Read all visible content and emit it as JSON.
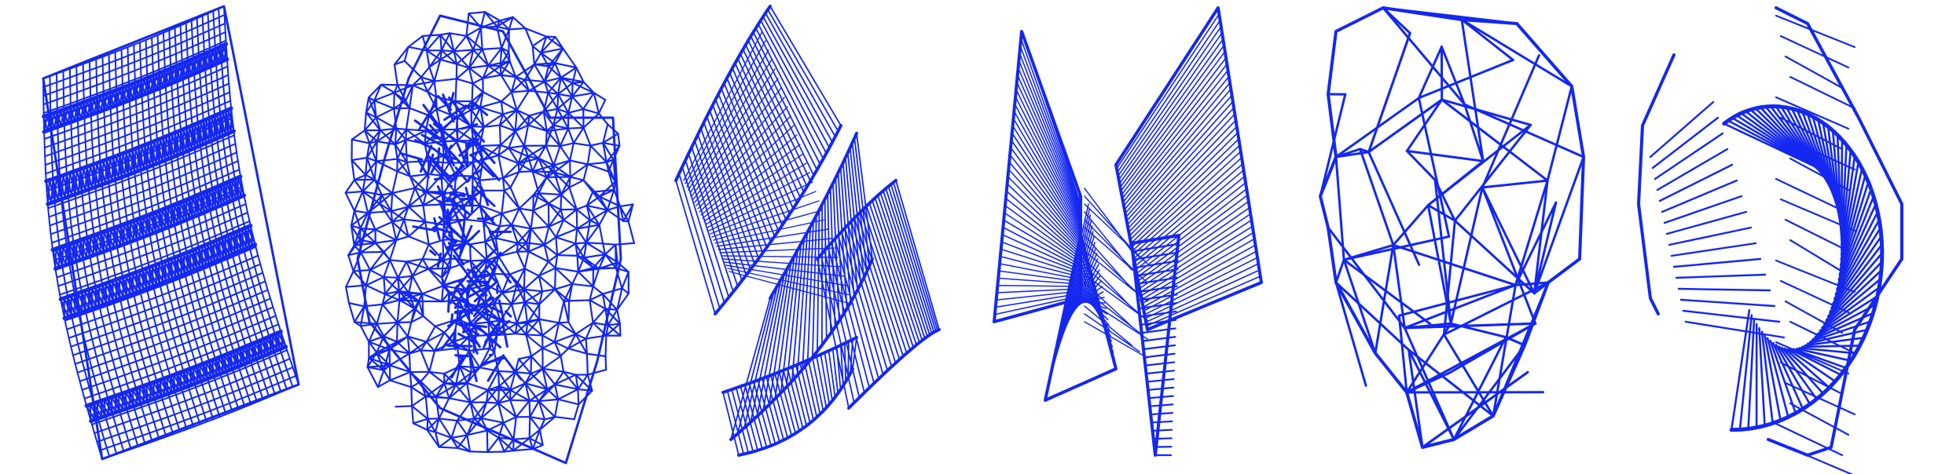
{
  "figure": {
    "background": "#ffffff",
    "stroke_color": "#1428f0",
    "panels": [
      {
        "shape": "curved-grid-sheet-icon"
      },
      {
        "shape": "crumpled-mesh-icon"
      },
      {
        "shape": "twisted-ruled-surface-icon"
      },
      {
        "shape": "bowtie-ruled-surface-icon"
      },
      {
        "shape": "tangled-wireframe-icon"
      },
      {
        "shape": "spiral-ruled-surface-icon"
      }
    ]
  }
}
